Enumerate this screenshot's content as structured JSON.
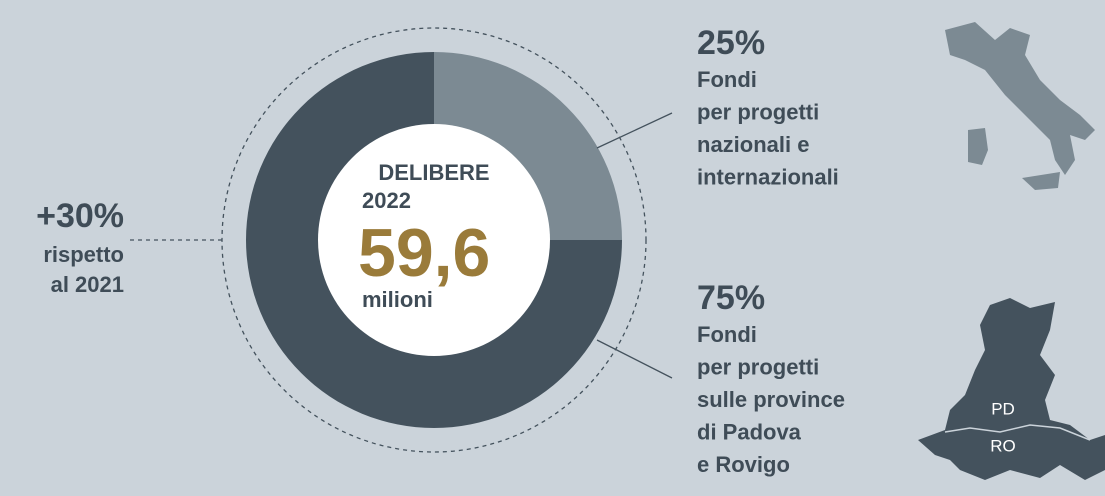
{
  "chart_data": {
    "type": "pie",
    "title": "DELIBERE",
    "subtitle": "2022",
    "annotations": {
      "total": "59,6",
      "unit": "milioni",
      "change": "+30%",
      "change_text": [
        "rispetto",
        "al 2021"
      ]
    },
    "categories": [
      [
        "Fondi",
        "per progetti",
        "nazionali e",
        "internazionali"
      ],
      [
        "Fondi",
        "per progetti",
        "sulle province",
        "di Padova",
        "e Rovigo"
      ]
    ],
    "values": [
      25,
      75
    ],
    "value_labels": [
      "25%",
      "75%"
    ],
    "colors": [
      "#7c8a93",
      "#44525d"
    ],
    "map_labels": [
      "PD",
      "RO"
    ]
  }
}
